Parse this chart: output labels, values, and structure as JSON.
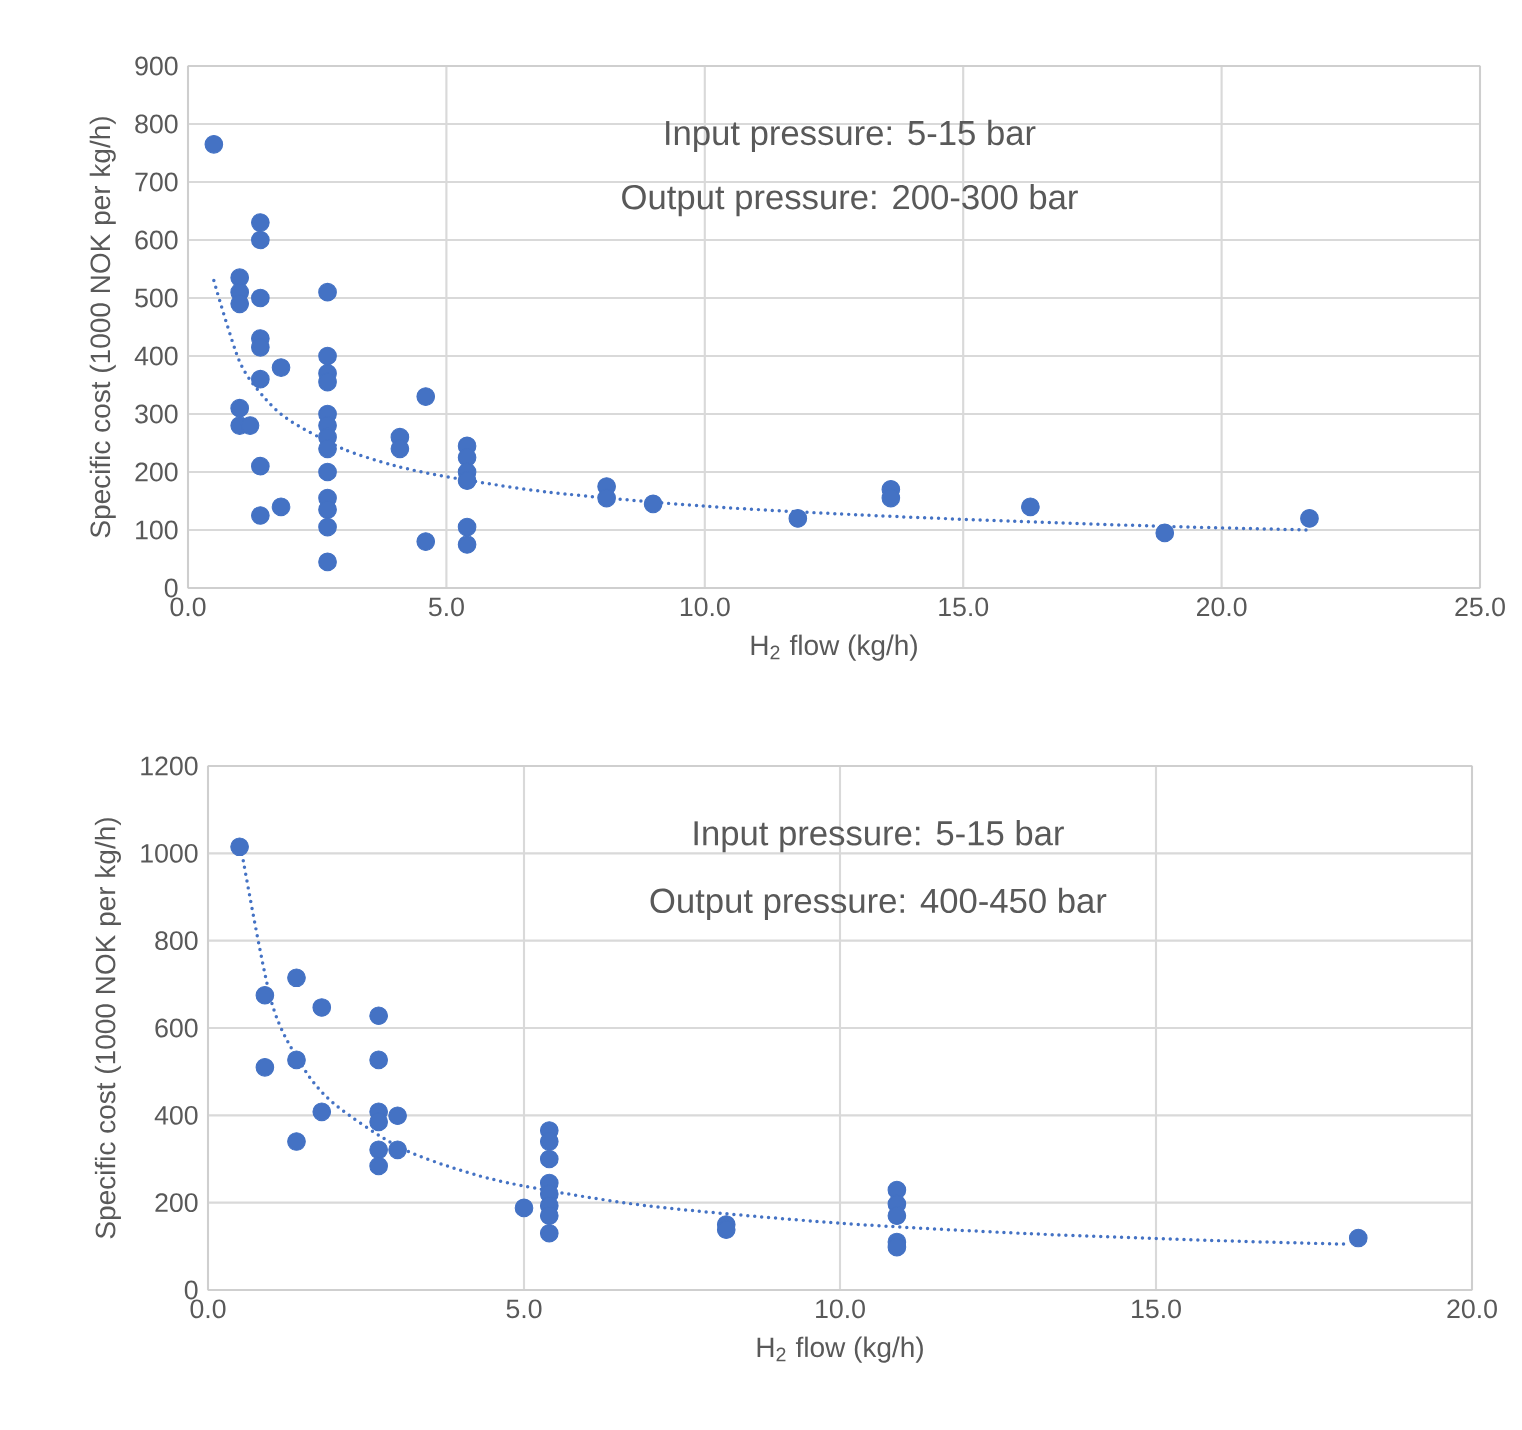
{
  "chart_data": [
    {
      "type": "scatter",
      "xlabel": "H$_{2}$ flow (kg/h)",
      "ylabel": "Specific cost (1000 NOK per kg/h)",
      "annotations": [
        "Input pressure: 5-15 bar",
        "Output pressure: 200-300 bar"
      ],
      "xlim": [
        0,
        25
      ],
      "xticks": [
        {
          "value": 0,
          "label": "0.0"
        },
        {
          "value": 5,
          "label": "5.0"
        },
        {
          "value": 10,
          "label": "10.0"
        },
        {
          "value": 15,
          "label": "15.0"
        },
        {
          "value": 20,
          "label": "20.0"
        },
        {
          "value": 25,
          "label": "25.0"
        }
      ],
      "ylim": [
        0,
        900
      ],
      "yticks": [
        0,
        100,
        200,
        300,
        400,
        500,
        600,
        700,
        800,
        900
      ],
      "grid": true,
      "series": [
        {
          "marker": "circle",
          "color": "#4472c4",
          "x": [
            0.5,
            1.0,
            1.0,
            1.0,
            1.0,
            1.0,
            1.2,
            1.4,
            1.4,
            1.4,
            1.4,
            1.4,
            1.4,
            1.4,
            1.4,
            1.8,
            1.8,
            2.7,
            2.7,
            2.7,
            2.7,
            2.7,
            2.7,
            2.7,
            2.7,
            2.7,
            2.7,
            2.7,
            2.7,
            2.7,
            4.1,
            4.1,
            4.6,
            4.6,
            5.4,
            5.4,
            5.4,
            5.4,
            5.4,
            5.4,
            8.1,
            8.1,
            9.0,
            11.8,
            13.6,
            13.6,
            16.3,
            18.9,
            21.7
          ],
          "values": [
            765,
            535,
            510,
            490,
            310,
            280,
            280,
            630,
            600,
            500,
            430,
            415,
            360,
            210,
            125,
            380,
            140,
            510,
            400,
            370,
            355,
            300,
            280,
            260,
            240,
            200,
            155,
            135,
            105,
            45,
            260,
            240,
            330,
            80,
            245,
            225,
            200,
            185,
            105,
            75,
            175,
            155,
            145,
            120,
            170,
            155,
            140,
            95,
            120
          ]
        },
        {
          "type": "line",
          "marker": "none",
          "line_style": "dotted",
          "color": "#4472c4",
          "x": [
            0.5,
            1,
            1.5,
            2,
            3,
            4,
            5,
            7,
            10,
            13,
            16,
            19,
            21.7
          ],
          "values": [
            530,
            390,
            326,
            287,
            240,
            211,
            192,
            165,
            141,
            126,
            115,
            106,
            100
          ]
        }
      ]
    },
    {
      "type": "scatter",
      "xlabel": "H$_{2}$ flow (kg/h)",
      "ylabel": "Specific cost (1000 NOK per kg/h)",
      "annotations": [
        "Input pressure: 5-15 bar",
        "Output pressure: 400-450 bar"
      ],
      "xlim": [
        0,
        20
      ],
      "xticks": [
        {
          "value": 0,
          "label": "0.0"
        },
        {
          "value": 5,
          "label": "5.0"
        },
        {
          "value": 10,
          "label": "10.0"
        },
        {
          "value": 15,
          "label": "15.0"
        },
        {
          "value": 20,
          "label": "20.0"
        }
      ],
      "ylim": [
        0,
        1200
      ],
      "yticks": [
        0,
        200,
        400,
        600,
        800,
        1000,
        1200
      ],
      "grid": true,
      "series": [
        {
          "marker": "circle",
          "color": "#4472c4",
          "x": [
            0.5,
            0.9,
            0.9,
            1.4,
            1.4,
            1.4,
            1.8,
            1.8,
            2.7,
            2.7,
            2.7,
            2.7,
            2.7,
            2.7,
            3.0,
            3.0,
            5.0,
            5.4,
            5.4,
            5.4,
            5.4,
            5.4,
            5.4,
            5.4,
            5.4,
            8.2,
            8.2,
            10.9,
            10.9,
            10.9,
            10.9,
            10.9,
            18.2
          ],
          "values": [
            1015,
            675,
            510,
            715,
            527,
            340,
            647,
            408,
            628,
            527,
            408,
            385,
            321,
            284,
            399,
            321,
            188,
            365,
            340,
            300,
            245,
            220,
            193,
            170,
            130,
            150,
            138,
            229,
            197,
            170,
            110,
            98,
            119
          ]
        },
        {
          "type": "line",
          "marker": "none",
          "line_style": "dotted",
          "color": "#4472c4",
          "x": [
            0.5,
            1,
            1.5,
            2,
            3,
            4,
            5,
            7,
            10,
            13,
            16,
            18
          ],
          "values": [
            1030,
            662,
            511,
            426,
            329,
            274,
            238,
            192,
            153,
            129,
            113,
            105
          ]
        }
      ]
    }
  ]
}
